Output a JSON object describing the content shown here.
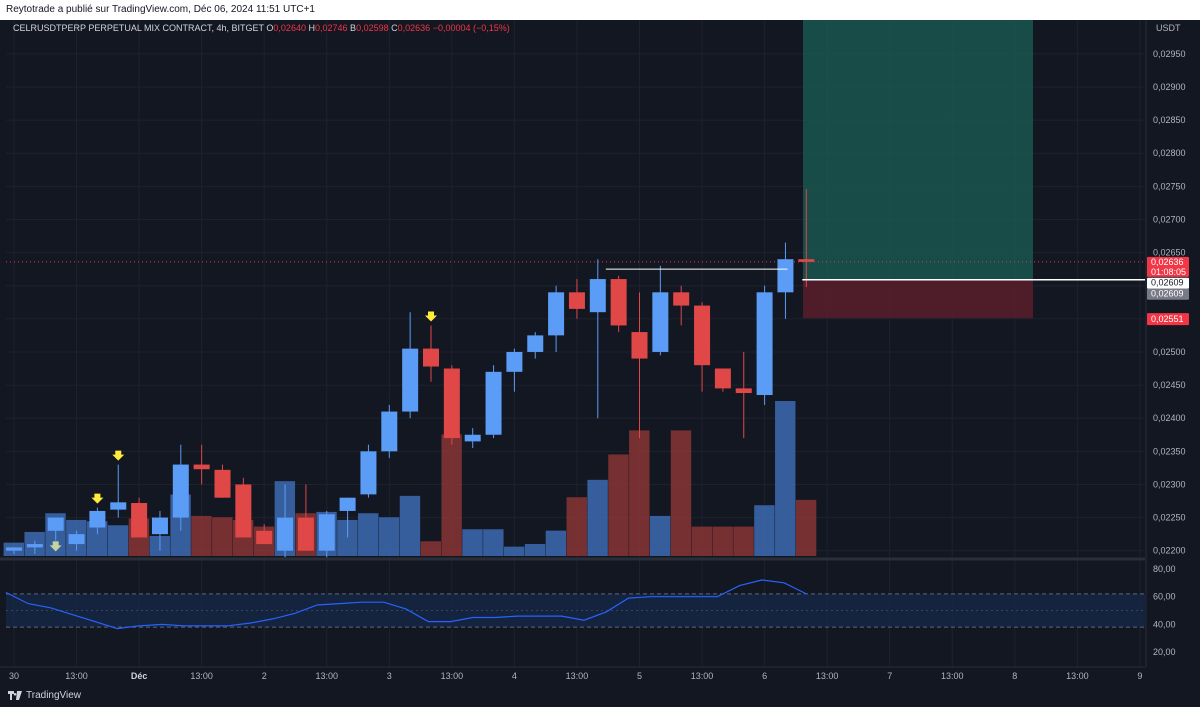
{
  "header": {
    "publish_text": "Reytotrade a publié sur TradingView.com, Déc 06, 2024 11:51 UTC+1"
  },
  "legend": {
    "symbol": "CELRUSDTPERP PERPETUAL MIX CONTRACT, 4h, BITGET",
    "o_label": "O",
    "o_value": "0,02640",
    "h_label": "H",
    "h_value": "0,02746",
    "b_label": "B",
    "b_value": "0,02598",
    "c_label": "C",
    "c_value": "0,02636",
    "change": "−0,00004 (−0,15%)"
  },
  "currency": "USDT",
  "brand": "TradingView",
  "colors": {
    "bg": "#131722",
    "up": "#5b9cf6",
    "down": "#e04848",
    "target": "#1a5f55",
    "stop": "#5a1f2c",
    "rsi_line": "#2962ff"
  },
  "price_tags": [
    {
      "id": "current",
      "text": "0,02636",
      "sub": "01:08:05",
      "value": 0.02636,
      "color": "#f23645"
    },
    {
      "id": "entry",
      "text": "0,02609",
      "value": 0.02609,
      "color": "#ffffff",
      "text_color": "#131722"
    },
    {
      "id": "entry2",
      "text": "0,02609",
      "value": 0.02609,
      "color": "#787b86"
    },
    {
      "id": "stop",
      "text": "0,02551",
      "value": 0.02551,
      "color": "#f23645"
    }
  ],
  "chart_data": {
    "type": "candlestick",
    "symbol": "CELRUSDTPERP",
    "timeframe": "4h",
    "y_ticks": [
      "0,02950",
      "0,02900",
      "0,02850",
      "0,02800",
      "0,02750",
      "0,02700",
      "0,02650",
      "0,02600",
      "0,02550",
      "0,02500",
      "0,02450",
      "0,02400",
      "0,02350",
      "0,02300",
      "0,02250",
      "0,02200"
    ],
    "y_tick_values": [
      0.0295,
      0.029,
      0.0285,
      0.028,
      0.0275,
      0.027,
      0.0265,
      0.026,
      0.0255,
      0.025,
      0.0245,
      0.024,
      0.0235,
      0.023,
      0.0225,
      0.022
    ],
    "ylim": [
      0.02192,
      0.02995
    ],
    "x_labels": [
      "30",
      "13:00",
      "Déc",
      "13:00",
      "2",
      "13:00",
      "3",
      "13:00",
      "4",
      "13:00",
      "5",
      "13:00",
      "6",
      "13:00",
      "7",
      "13:00",
      "8",
      "13:00",
      "9"
    ],
    "x_label_index": [
      0,
      3,
      6,
      9,
      12,
      15,
      18,
      21,
      24,
      27,
      30,
      33,
      36,
      39,
      42,
      45,
      48,
      51,
      54
    ],
    "bars": [
      {
        "o": 0.022,
        "h": 0.02205,
        "l": 0.02195,
        "c": 0.02205,
        "v": 10
      },
      {
        "o": 0.02205,
        "h": 0.02215,
        "l": 0.02195,
        "c": 0.0221,
        "v": 18
      },
      {
        "o": 0.0223,
        "h": 0.0225,
        "l": 0.02215,
        "c": 0.0225,
        "v": 32
      },
      {
        "o": 0.0221,
        "h": 0.0223,
        "l": 0.022,
        "c": 0.02225,
        "v": 27
      },
      {
        "o": 0.02235,
        "h": 0.02265,
        "l": 0.02225,
        "c": 0.0226,
        "v": 26
      },
      {
        "o": 0.02262,
        "h": 0.0233,
        "l": 0.0225,
        "c": 0.02273,
        "v": 23
      },
      {
        "o": 0.02272,
        "h": 0.0228,
        "l": 0.0222,
        "c": 0.0222,
        "v": 28
      },
      {
        "o": 0.02225,
        "h": 0.0226,
        "l": 0.022,
        "c": 0.0225,
        "v": 15
      },
      {
        "o": 0.0225,
        "h": 0.0236,
        "l": 0.0223,
        "c": 0.0233,
        "v": 46
      },
      {
        "o": 0.0233,
        "h": 0.0236,
        "l": 0.023,
        "c": 0.02323,
        "v": 30
      },
      {
        "o": 0.02322,
        "h": 0.0233,
        "l": 0.0228,
        "c": 0.0228,
        "v": 29
      },
      {
        "o": 0.023,
        "h": 0.0231,
        "l": 0.0222,
        "c": 0.0222,
        "v": 27
      },
      {
        "o": 0.0223,
        "h": 0.0224,
        "l": 0.0221,
        "c": 0.0221,
        "v": 22
      },
      {
        "o": 0.022,
        "h": 0.023,
        "l": 0.0219,
        "c": 0.0225,
        "v": 56
      },
      {
        "o": 0.0225,
        "h": 0.023,
        "l": 0.022,
        "c": 0.022,
        "v": 32
      },
      {
        "o": 0.022,
        "h": 0.0226,
        "l": 0.0219,
        "c": 0.02255,
        "v": 33
      },
      {
        "o": 0.0226,
        "h": 0.0228,
        "l": 0.0222,
        "c": 0.0228,
        "v": 27
      },
      {
        "o": 0.02285,
        "h": 0.0236,
        "l": 0.0228,
        "c": 0.0235,
        "v": 32
      },
      {
        "o": 0.0235,
        "h": 0.0242,
        "l": 0.0234,
        "c": 0.0241,
        "v": 29
      },
      {
        "o": 0.0241,
        "h": 0.0256,
        "l": 0.024,
        "c": 0.02505,
        "v": 45
      },
      {
        "o": 0.02505,
        "h": 0.0254,
        "l": 0.02455,
        "c": 0.02478,
        "v": 11
      },
      {
        "o": 0.02475,
        "h": 0.0248,
        "l": 0.0236,
        "c": 0.0237,
        "v": 91
      },
      {
        "o": 0.02365,
        "h": 0.02385,
        "l": 0.02355,
        "c": 0.02375,
        "v": 20
      },
      {
        "o": 0.02375,
        "h": 0.0248,
        "l": 0.0237,
        "c": 0.0247,
        "v": 20
      },
      {
        "o": 0.0247,
        "h": 0.02505,
        "l": 0.0244,
        "c": 0.025,
        "v": 7
      },
      {
        "o": 0.025,
        "h": 0.0253,
        "l": 0.0249,
        "c": 0.02525,
        "v": 9
      },
      {
        "o": 0.02525,
        "h": 0.026,
        "l": 0.025,
        "c": 0.0259,
        "v": 19
      },
      {
        "o": 0.0259,
        "h": 0.0261,
        "l": 0.0255,
        "c": 0.02565,
        "v": 44
      },
      {
        "o": 0.0256,
        "h": 0.0264,
        "l": 0.024,
        "c": 0.0261,
        "v": 57
      },
      {
        "o": 0.0261,
        "h": 0.02615,
        "l": 0.0253,
        "c": 0.0254,
        "v": 76
      },
      {
        "o": 0.0253,
        "h": 0.0259,
        "l": 0.0237,
        "c": 0.0249,
        "v": 94
      },
      {
        "o": 0.025,
        "h": 0.0263,
        "l": 0.02495,
        "c": 0.0259,
        "v": 30
      },
      {
        "o": 0.0259,
        "h": 0.026,
        "l": 0.0254,
        "c": 0.0257,
        "v": 94
      },
      {
        "o": 0.0257,
        "h": 0.02575,
        "l": 0.0244,
        "c": 0.0248,
        "v": 22
      },
      {
        "o": 0.02475,
        "h": 0.02475,
        "l": 0.0244,
        "c": 0.02445,
        "v": 22
      },
      {
        "o": 0.02445,
        "h": 0.025,
        "l": 0.0237,
        "c": 0.02438,
        "v": 22
      },
      {
        "o": 0.02435,
        "h": 0.026,
        "l": 0.0242,
        "c": 0.0259,
        "v": 38
      },
      {
        "o": 0.0259,
        "h": 0.02665,
        "l": 0.0255,
        "c": 0.0264,
        "v": 116
      },
      {
        "o": 0.0264,
        "h": 0.02746,
        "l": 0.02598,
        "c": 0.02636,
        "v": 42
      }
    ],
    "signals_down_arrow": [
      4,
      5,
      20
    ],
    "signals_down_arrow_grey": [
      2
    ],
    "position": {
      "entry": 0.02609,
      "target": 0.02995,
      "stop": 0.02551
    },
    "resistance_line": 0.02625,
    "rsi": {
      "ticks": [
        "80,00",
        "60,00",
        "40,00",
        "20,00"
      ],
      "tick_values": [
        80,
        60,
        40,
        20
      ],
      "upper": 62,
      "lower": 38,
      "mid": 50,
      "values": [
        63,
        55,
        52,
        47,
        42,
        37,
        39,
        40,
        39,
        39,
        39,
        41,
        44,
        48,
        54,
        55,
        56,
        56,
        51,
        42,
        42,
        45,
        45,
        46,
        46,
        46,
        43,
        49,
        59,
        60,
        60,
        60,
        60,
        68,
        72,
        70,
        62
      ]
    }
  }
}
